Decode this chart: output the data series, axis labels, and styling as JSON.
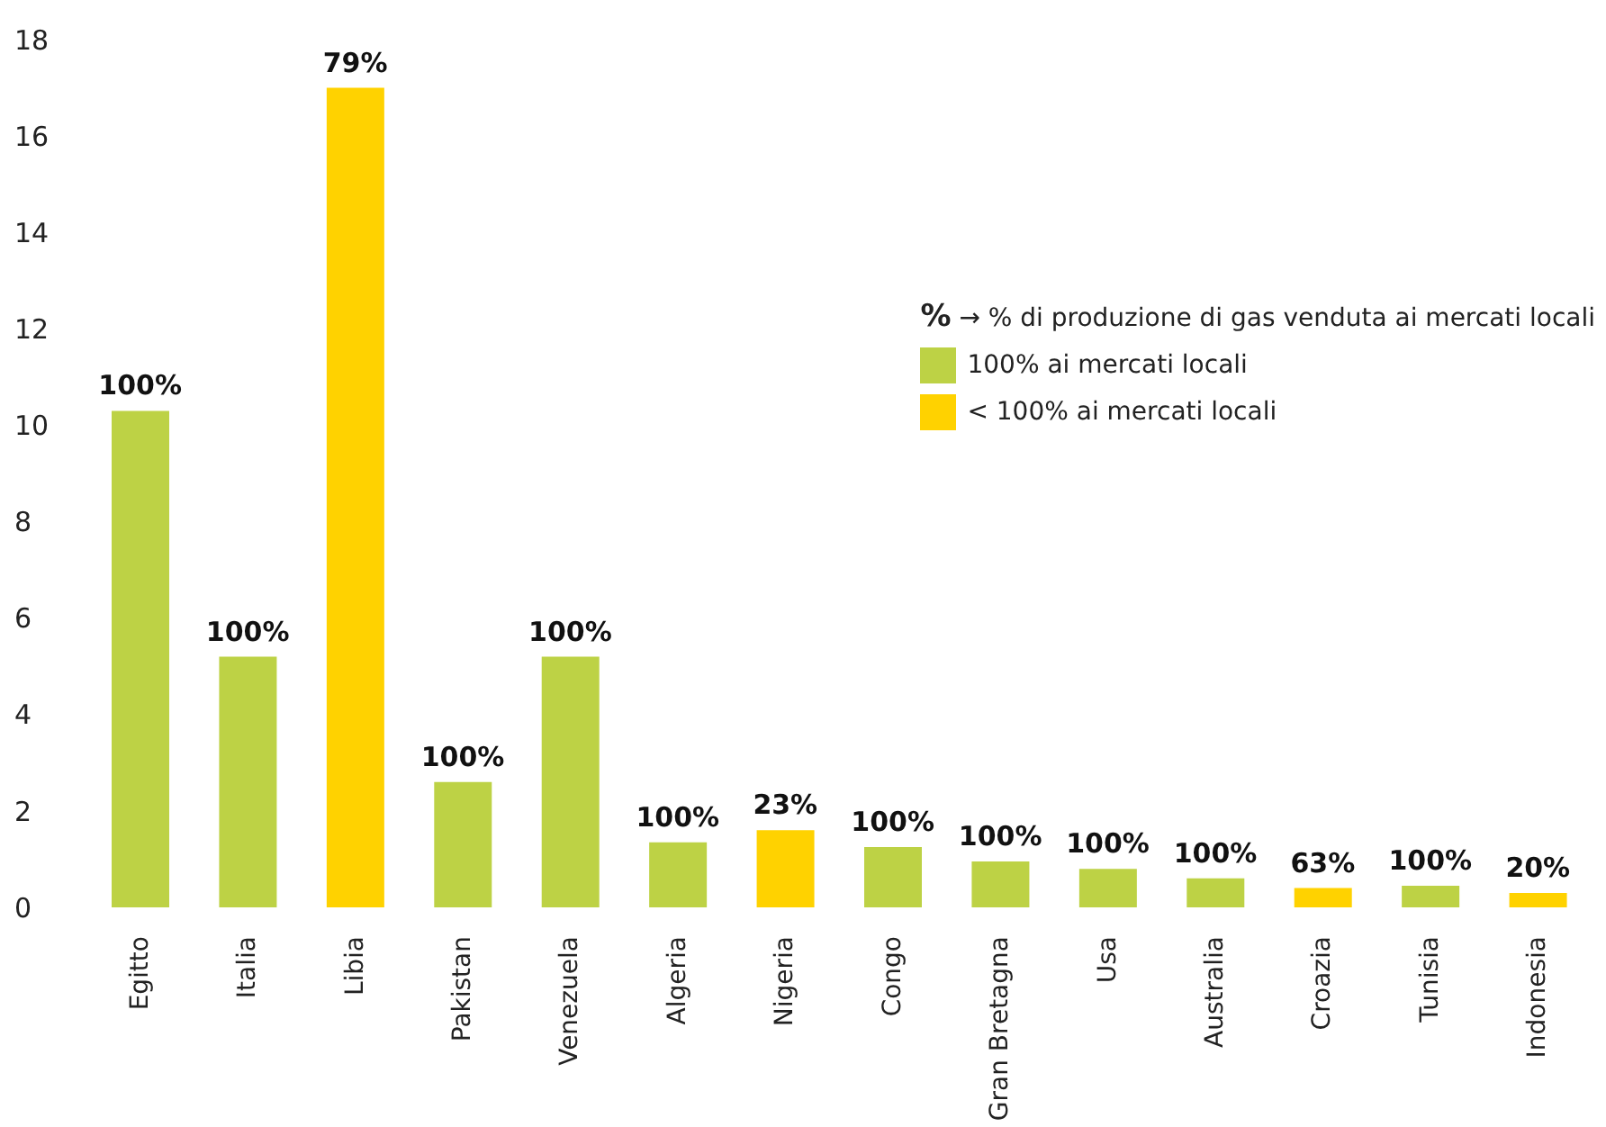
{
  "chart_data": {
    "type": "bar",
    "categories": [
      "Egitto",
      "Italia",
      "Libia",
      "Pakistan",
      "Venezuela",
      "Algeria",
      "Nigeria",
      "Congo",
      "Gran Bretagna",
      "Usa",
      "Australia",
      "Croazia",
      "Tunisia",
      "Indonesia"
    ],
    "stacked": true,
    "legend_title": "% → % di produzione di gas venduta ai mercati locali",
    "series": [
      {
        "name": "100% ai mercati locali",
        "color": "#bdd245",
        "values": [
          10.3,
          5.2,
          null,
          2.6,
          5.2,
          1.35,
          null,
          1.25,
          0.95,
          0.8,
          0.6,
          null,
          0.45,
          null
        ]
      },
      {
        "name": "< 100% ai mercati locali",
        "color": "#ffd200",
        "values": [
          null,
          null,
          17,
          null,
          null,
          null,
          1.6,
          null,
          null,
          null,
          null,
          0.4,
          null,
          0.3
        ]
      }
    ],
    "annotations": [
      {
        "text": "100%",
        "x": "Egitto",
        "y": 10.3
      },
      {
        "text": "100%",
        "x": "Italia",
        "y": 5.2
      },
      {
        "text": "79%",
        "x": "Libia",
        "y": 17
      },
      {
        "text": "100%",
        "x": "Pakistan",
        "y": 2.6
      },
      {
        "text": "100%",
        "x": "Venezuela",
        "y": 5.2
      },
      {
        "text": "100%",
        "x": "Algeria",
        "y": 1.35
      },
      {
        "text": "23%",
        "x": "Nigeria",
        "y": 1.6
      },
      {
        "text": "100%",
        "x": "Congo",
        "y": 1.25
      },
      {
        "text": "100%",
        "x": "Gran Bretagna",
        "y": 0.95
      },
      {
        "text": "100%",
        "x": "Usa",
        "y": 0.8
      },
      {
        "text": "100%",
        "x": "Australia",
        "y": 0.6
      },
      {
        "text": "63%",
        "x": "Croazia",
        "y": 0.4
      },
      {
        "text": "100%",
        "x": "Tunisia",
        "y": 0.45
      },
      {
        "text": "20%",
        "x": "Indonesia",
        "y": 0.3
      }
    ],
    "ylim": [
      0,
      18
    ],
    "yticks": [
      0,
      2,
      4,
      6,
      8,
      10,
      12,
      14,
      16,
      18
    ],
    "grid": false,
    "legend": "top right"
  }
}
